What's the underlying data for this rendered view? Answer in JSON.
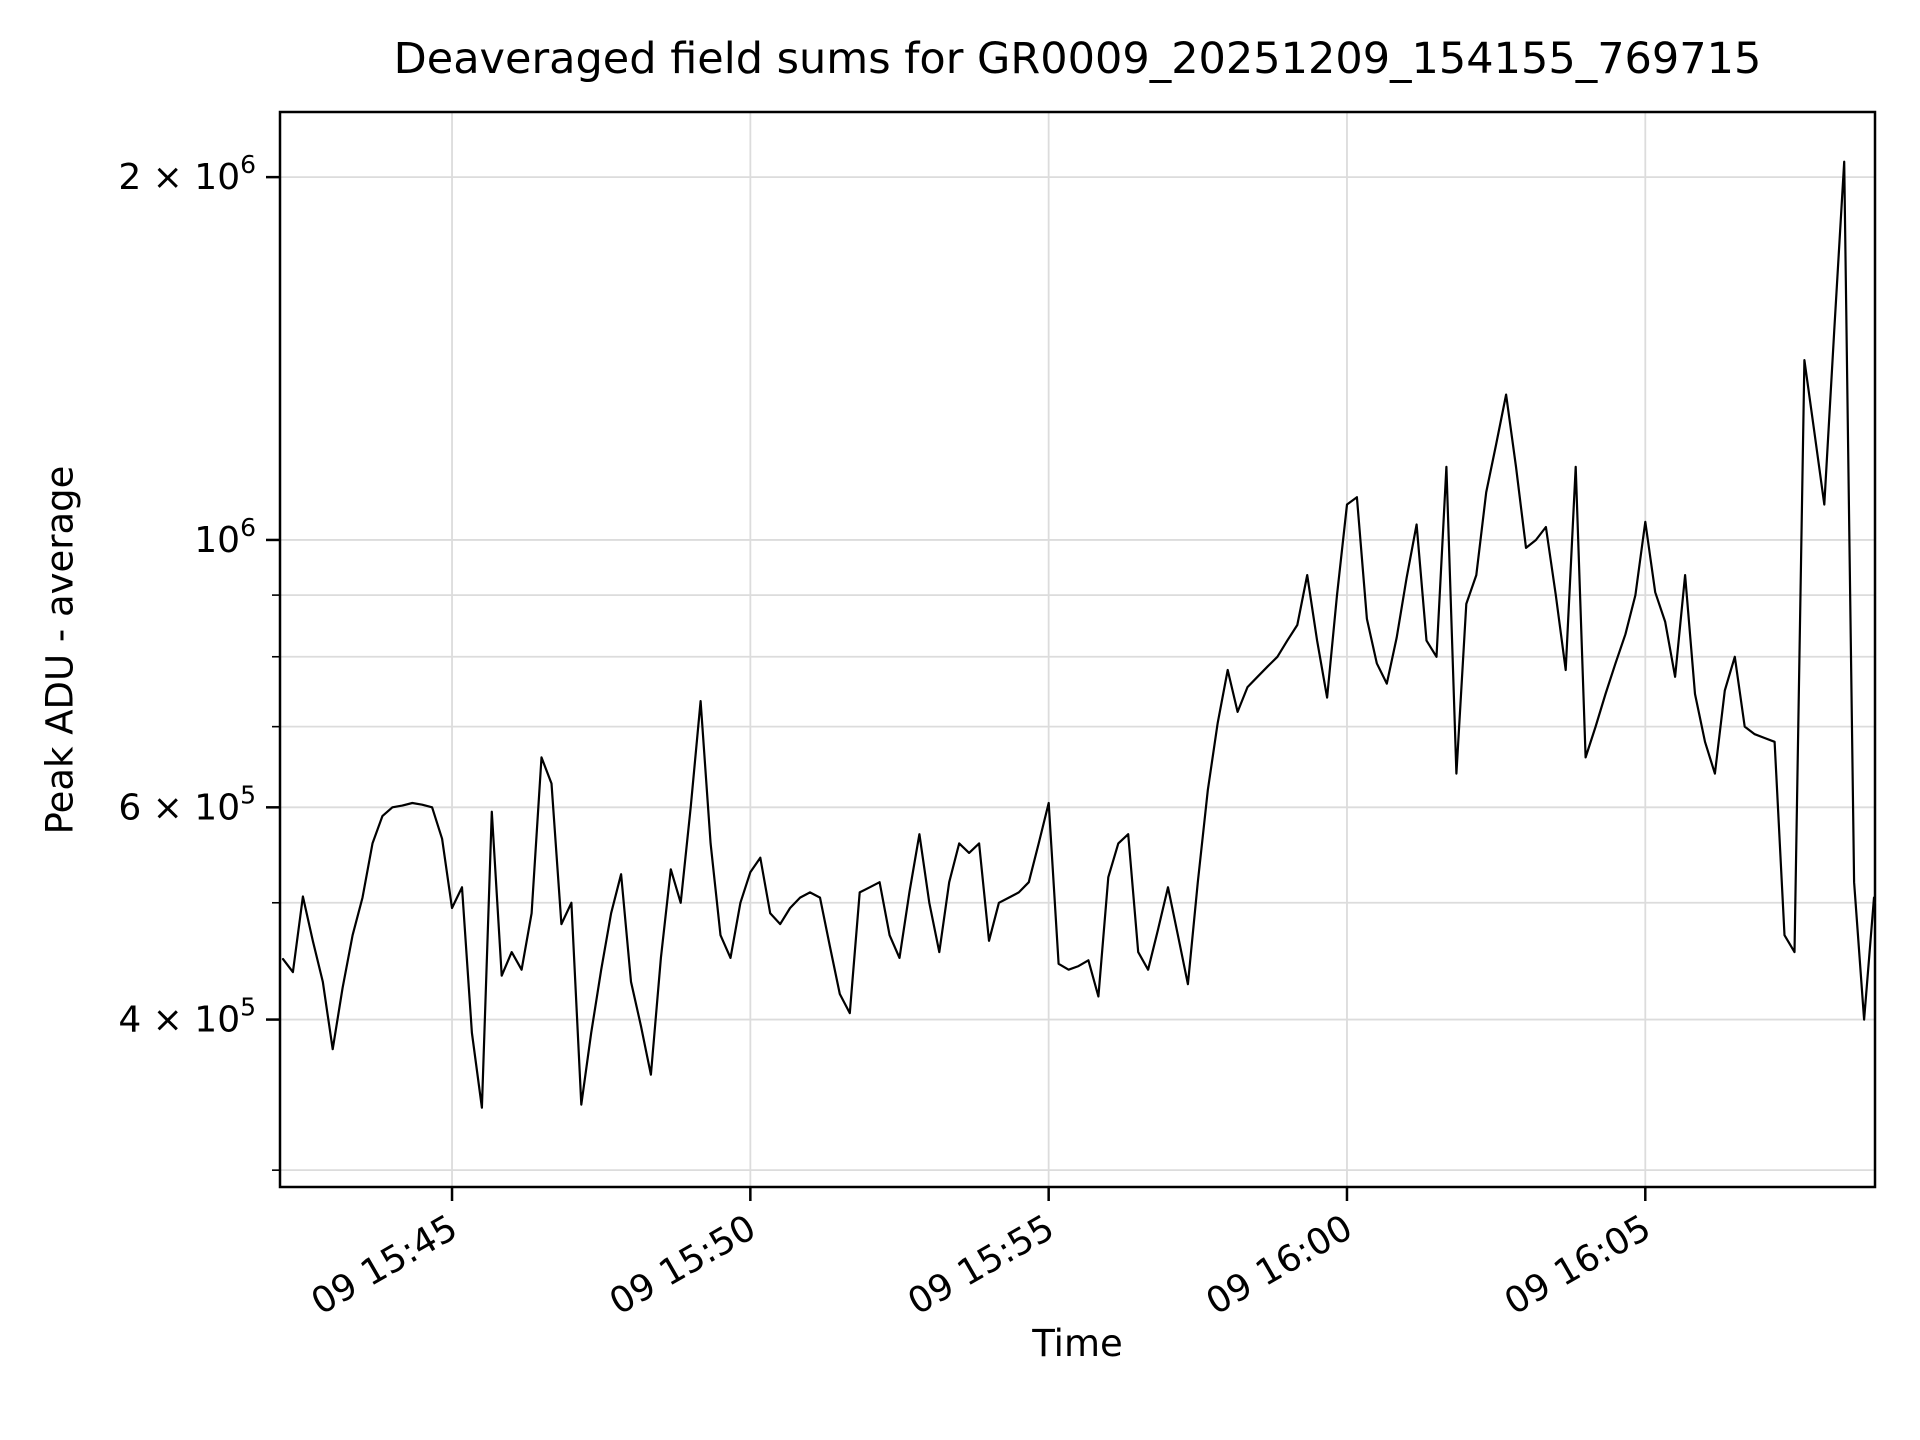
{
  "figure": {
    "title": "Deaveraged field sums for GR0009_20251209_154155_769715"
  },
  "colors": {
    "line": "#000000",
    "grid": "#dcdcdc",
    "spine": "#000000",
    "background": "#ffffff",
    "text": "#000000"
  },
  "chart_data": {
    "type": "line",
    "title": "Deaveraged field sums for GR0009_20251209_154155_769715",
    "xlabel": "Time",
    "ylabel": "Peak ADU - average",
    "yscale": "log",
    "grid": true,
    "legend": "none",
    "x_tick_labels": [
      "09 15:45",
      "09 15:50",
      "09 15:55",
      "09 16:00",
      "09 16:05"
    ],
    "x_tick_times": [
      "15:45:00",
      "15:50:00",
      "15:55:00",
      "16:00:00",
      "16:05:00"
    ],
    "y_major_tick_labels": [
      {
        "text": "2 × 10",
        "sup": "6",
        "value": 2000000
      },
      {
        "text": "10",
        "sup": "6",
        "value": 1000000
      },
      {
        "text": "6 × 10",
        "sup": "5",
        "value": 600000
      },
      {
        "text": "4 × 10",
        "sup": "5",
        "value": 400000
      }
    ],
    "y_minor_gridline_values": [
      300000,
      500000,
      700000,
      800000,
      900000
    ],
    "ylim": [
      290500,
      2265000
    ],
    "xlim_times": [
      "15:42:07",
      "16:08:51"
    ],
    "x": [
      "15:42:10",
      "15:42:20",
      "15:42:30",
      "15:42:40",
      "15:42:50",
      "15:43:00",
      "15:43:10",
      "15:43:20",
      "15:43:30",
      "15:43:40",
      "15:43:50",
      "15:44:00",
      "15:44:10",
      "15:44:20",
      "15:44:30",
      "15:44:40",
      "15:44:50",
      "15:45:00",
      "15:45:10",
      "15:45:20",
      "15:45:30",
      "15:45:40",
      "15:45:50",
      "15:46:00",
      "15:46:10",
      "15:46:20",
      "15:46:30",
      "15:46:40",
      "15:46:50",
      "15:47:00",
      "15:47:10",
      "15:47:20",
      "15:47:30",
      "15:47:40",
      "15:47:50",
      "15:48:00",
      "15:48:10",
      "15:48:20",
      "15:48:30",
      "15:48:40",
      "15:48:50",
      "15:49:00",
      "15:49:10",
      "15:49:20",
      "15:49:30",
      "15:49:40",
      "15:49:50",
      "15:50:00",
      "15:50:10",
      "15:50:20",
      "15:50:30",
      "15:50:40",
      "15:50:50",
      "15:51:00",
      "15:51:10",
      "15:51:20",
      "15:51:30",
      "15:51:40",
      "15:51:50",
      "15:52:00",
      "15:52:10",
      "15:52:20",
      "15:52:30",
      "15:52:40",
      "15:52:50",
      "15:53:00",
      "15:53:10",
      "15:53:20",
      "15:53:30",
      "15:53:40",
      "15:53:50",
      "15:54:00",
      "15:54:10",
      "15:54:20",
      "15:54:30",
      "15:54:40",
      "15:54:50",
      "15:55:00",
      "15:55:10",
      "15:55:20",
      "15:55:30",
      "15:55:40",
      "15:55:50",
      "15:56:00",
      "15:56:10",
      "15:56:20",
      "15:56:30",
      "15:56:40",
      "15:56:50",
      "15:57:00",
      "15:57:10",
      "15:57:20",
      "15:57:30",
      "15:57:40",
      "15:57:50",
      "15:58:00",
      "15:58:10",
      "15:58:20",
      "15:58:30",
      "15:58:40",
      "15:58:50",
      "15:59:00",
      "15:59:10",
      "15:59:20",
      "15:59:30",
      "15:59:40",
      "15:59:50",
      "16:00:00",
      "16:00:10",
      "16:00:20",
      "16:00:30",
      "16:00:40",
      "16:00:50",
      "16:01:00",
      "16:01:10",
      "16:01:20",
      "16:01:30",
      "16:01:40",
      "16:01:50",
      "16:02:00",
      "16:02:10",
      "16:02:20",
      "16:02:30",
      "16:02:40",
      "16:02:50",
      "16:03:00",
      "16:03:10",
      "16:03:20",
      "16:03:30",
      "16:03:40",
      "16:03:50",
      "16:04:00",
      "16:04:10",
      "16:04:20",
      "16:04:30",
      "16:04:40",
      "16:04:50",
      "16:05:00",
      "16:05:10",
      "16:05:20",
      "16:05:30",
      "16:05:40",
      "16:05:50",
      "16:06:00",
      "16:06:10",
      "16:06:20",
      "16:06:30",
      "16:06:40",
      "16:06:50",
      "16:07:00",
      "16:07:10",
      "16:07:20",
      "16:07:30",
      "16:07:40",
      "16:07:50",
      "16:08:00",
      "16:08:10",
      "16:08:20",
      "16:08:30",
      "16:08:40",
      "16:08:50"
    ],
    "y": [
      449000,
      438000,
      506000,
      465000,
      430000,
      378000,
      425000,
      470000,
      505000,
      560000,
      590000,
      600000,
      602000,
      605000,
      603000,
      600000,
      565000,
      495000,
      515000,
      390000,
      338000,
      595000,
      435000,
      455000,
      440000,
      490000,
      660000,
      628000,
      480000,
      500000,
      340000,
      390000,
      440000,
      490000,
      528000,
      430000,
      395000,
      360000,
      450000,
      533000,
      500000,
      600000,
      735000,
      560000,
      470000,
      450000,
      500000,
      530000,
      545000,
      490000,
      480000,
      495000,
      505000,
      510000,
      505000,
      460000,
      420000,
      405000,
      510000,
      515000,
      520000,
      470000,
      450000,
      510000,
      570000,
      500000,
      455000,
      520000,
      560000,
      550000,
      560000,
      465000,
      500000,
      505000,
      510000,
      520000,
      560000,
      605000,
      445000,
      440000,
      443000,
      448000,
      418000,
      525000,
      560000,
      570000,
      455000,
      440000,
      475000,
      515000,
      470000,
      428000,
      520000,
      620000,
      705000,
      780000,
      720000,
      755000,
      770000,
      785000,
      800000,
      825000,
      850000,
      935000,
      825000,
      740000,
      900000,
      1070000,
      1085000,
      860000,
      790000,
      760000,
      830000,
      930000,
      1030000,
      825000,
      800000,
      1150000,
      640000,
      885000,
      935000,
      1095000,
      1200000,
      1320000,
      1150000,
      985000,
      1000000,
      1025000,
      900000,
      780000,
      1150000,
      660000,
      700000,
      745000,
      790000,
      835000,
      900000,
      1035000,
      905000,
      855000,
      770000,
      935000,
      745000,
      680000,
      640000,
      750000,
      800000,
      700000,
      690000,
      685000,
      680000,
      470000,
      455000,
      1410000,
      1230000,
      1070000,
      1490000,
      2060000,
      520000,
      400000,
      505000
    ]
  }
}
